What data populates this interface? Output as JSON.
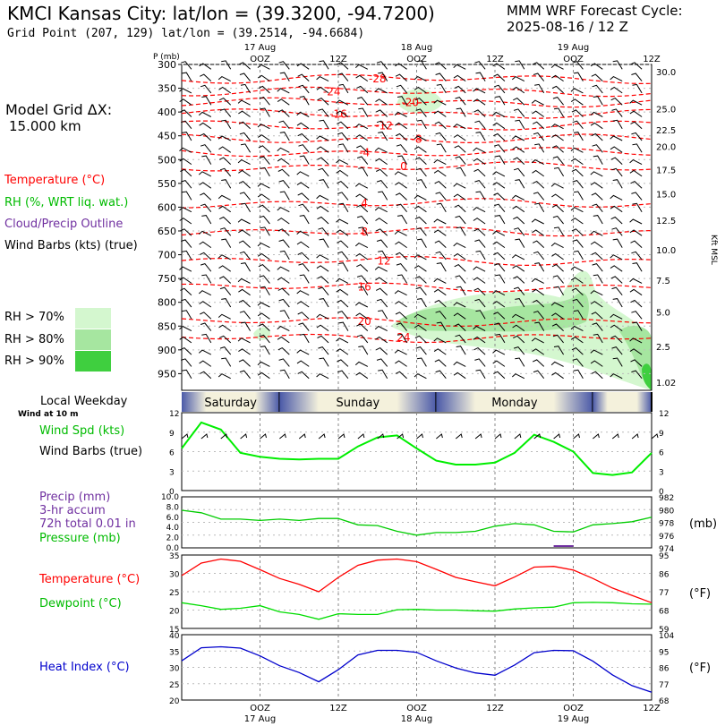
{
  "header": {
    "title": "KMCI Kansas City:  lat/lon = (39.3200, -94.7200)",
    "subtitle": "Grid Point (207, 129) lat/lon = (39.2514, -94.6684)",
    "forecast_line1": "MMM WRF Forecast Cycle:",
    "forecast_line2": "2025-08-16 / 12  Z"
  },
  "left_panel": {
    "model_grid_label": "Model Grid ΔX:",
    "model_grid_value": "15.000 km",
    "legend": [
      {
        "text": "Temperature (°C)",
        "color": "#ff0000"
      },
      {
        "text": "RH (%, WRT liq. wat.)",
        "color": "#00bb00"
      },
      {
        "text": "Cloud/Precip Outline",
        "color": "#7030a0"
      },
      {
        "text": "Wind Barbs (kts) (true)",
        "color": "#000000"
      }
    ],
    "rh_legend": [
      {
        "text": "RH > 70%",
        "color": "#d4f7cf"
      },
      {
        "text": "RH > 80%",
        "color": "#a6e6a0"
      },
      {
        "text": "RH > 90%",
        "color": "#3fcf3f"
      }
    ],
    "local_weekday_label": "Local Weekday",
    "wind_at_label": "Wind at 10 m",
    "wind_spd_label": "Wind Spd (kts)",
    "wind_barbs_label": "Wind Barbs (true)",
    "precip_label": "Precip (mm)",
    "accum_label": "3-hr accum",
    "total_label": "72h total 0.01 in",
    "pressure_label": "Pressure (mb)",
    "temperature_label": "Temperature (°C)",
    "dewpoint_label": "Dewpoint (°C)",
    "heat_index_label": "Heat Index (°C)"
  },
  "colors": {
    "temperature": "#ff0000",
    "dewpoint": "#00dd00",
    "pressure": "#00cc00",
    "wind": "#00ee00",
    "heat_index": "#0000cc",
    "precip": "#7030a0",
    "rh70": "#d4f7cf",
    "rh80": "#a6e6a0",
    "rh90": "#3fcf3f",
    "day_band_light": "#f4f1dc",
    "day_band_dark": "#4a59a8"
  },
  "chart_data": [
    {
      "type": "line",
      "panel": "cross-section",
      "ylabel": "P (mb)",
      "right_ylabel": "Kft MSL",
      "time_labels": [
        {
          "label": "17 Aug",
          "hour": 12,
          "row": 0
        },
        {
          "label": "OOZ",
          "hour": 12,
          "row": 1
        },
        {
          "label": "12Z",
          "hour": 24,
          "row": 1
        },
        {
          "label": "18 Aug",
          "hour": 36,
          "row": 0
        },
        {
          "label": "OOZ",
          "hour": 36,
          "row": 1
        },
        {
          "label": "12Z",
          "hour": 48,
          "row": 1
        },
        {
          "label": "19 Aug",
          "hour": 60,
          "row": 0
        },
        {
          "label": "OOZ",
          "hour": 60,
          "row": 1
        },
        {
          "label": "12Z",
          "hour": 72,
          "row": 1
        }
      ],
      "pressure_ticks": [
        300,
        350,
        400,
        450,
        500,
        550,
        600,
        650,
        700,
        750,
        800,
        850,
        900,
        950
      ],
      "ylim": [
        300,
        985
      ],
      "xlim": [
        0,
        72
      ],
      "kft_ticks": [
        {
          "label": "30.0",
          "p": 315
        },
        {
          "label": "25.0",
          "p": 393
        },
        {
          "label": "22.5",
          "p": 437
        },
        {
          "label": "20.0",
          "p": 472
        },
        {
          "label": "17.5",
          "p": 521
        },
        {
          "label": "15.0",
          "p": 572
        },
        {
          "label": "12.5",
          "p": 627
        },
        {
          "label": "10.0",
          "p": 690
        },
        {
          "label": "7.5",
          "p": 754
        },
        {
          "label": "5.0",
          "p": 820
        },
        {
          "label": "2.5",
          "p": 893
        },
        {
          "label": "1.02",
          "p": 968
        }
      ],
      "isotherms": [
        {
          "label": "-28",
          "p": 330,
          "label_hour": 30
        },
        {
          "label": "-24",
          "p": 357,
          "label_hour": 23
        },
        {
          "label": "-20",
          "p": 380,
          "label_hour": 35
        },
        {
          "label": "-16",
          "p": 404,
          "label_hour": 24
        },
        {
          "label": "-12",
          "p": 429,
          "label_hour": 31
        },
        {
          "label": "-8",
          "p": 457,
          "label_hour": 36
        },
        {
          "label": "-4",
          "p": 485,
          "label_hour": 28
        },
        {
          "label": "0",
          "p": 515,
          "label_hour": 34
        },
        {
          "label": "4",
          "p": 592,
          "label_hour": 28
        },
        {
          "label": "8",
          "p": 652,
          "label_hour": 28
        },
        {
          "label": "12",
          "p": 713,
          "label_hour": 31
        },
        {
          "label": "16",
          "p": 768,
          "label_hour": 28
        },
        {
          "label": "20",
          "p": 840,
          "label_hour": 28
        },
        {
          "label": "24",
          "p": 874,
          "label_hour": 34
        }
      ]
    },
    {
      "type": "line",
      "panel": "wind",
      "title": "Wind Spd (kts)",
      "x": [
        0,
        3,
        6,
        9,
        12,
        15,
        18,
        21,
        24,
        27,
        30,
        33,
        36,
        39,
        42,
        45,
        48,
        51,
        54,
        57,
        60,
        63,
        66,
        69,
        72
      ],
      "values": [
        6.5,
        10.5,
        9.4,
        5.8,
        5.2,
        4.9,
        4.8,
        4.9,
        4.9,
        6.8,
        8.2,
        8.5,
        6.5,
        4.6,
        4.0,
        4.0,
        4.3,
        5.8,
        8.6,
        7.5,
        6.0,
        2.7,
        2.4,
        2.8,
        5.8
      ],
      "ylim": [
        0,
        12
      ],
      "yticks": [
        0,
        3,
        6,
        9,
        12
      ]
    },
    {
      "type": "line",
      "panel": "pressure",
      "title": "Pressure (mb)",
      "x": [
        0,
        3,
        6,
        9,
        12,
        15,
        18,
        21,
        24,
        27,
        30,
        33,
        36,
        39,
        42,
        45,
        48,
        51,
        54,
        57,
        60,
        63,
        66,
        69,
        72
      ],
      "values": [
        979.9,
        979.5,
        978.5,
        978.5,
        978.3,
        978.5,
        978.3,
        978.6,
        978.6,
        977.6,
        977.5,
        976.6,
        976.0,
        976.4,
        976.4,
        976.6,
        977.4,
        977.8,
        977.6,
        976.6,
        976.5,
        977.6,
        977.8,
        978.1,
        978.8
      ],
      "ylim": [
        974,
        982
      ],
      "yticks_right": [
        974,
        976,
        978,
        980,
        982
      ],
      "precip_yticks_left": [
        "0.0",
        "2.0",
        "4.0",
        "6.0",
        "8.0",
        "10.0"
      ],
      "precip_bar": {
        "hour": 58.5,
        "value": 0.1
      },
      "unit_label": "(mb)"
    },
    {
      "type": "line",
      "panel": "temperature",
      "series": [
        {
          "name": "Temperature (°C)",
          "x": [
            0,
            3,
            6,
            9,
            12,
            15,
            18,
            21,
            24,
            27,
            30,
            33,
            36,
            39,
            42,
            45,
            48,
            51,
            54,
            57,
            60,
            63,
            66,
            69,
            72
          ],
          "values": [
            29.4,
            32.8,
            33.9,
            33.3,
            31.0,
            28.6,
            27.0,
            25.0,
            28.9,
            32.2,
            33.6,
            33.9,
            33.2,
            31.1,
            28.9,
            27.7,
            26.6,
            29.0,
            31.7,
            31.9,
            30.9,
            28.6,
            26.0,
            24.0,
            22.0
          ]
        },
        {
          "name": "Dewpoint (°C)",
          "x": [
            0,
            3,
            6,
            9,
            12,
            15,
            18,
            21,
            24,
            27,
            30,
            33,
            36,
            39,
            42,
            45,
            48,
            51,
            54,
            57,
            60,
            63,
            66,
            69,
            72
          ],
          "values": [
            22.0,
            21.2,
            20.2,
            20.5,
            21.2,
            19.5,
            18.8,
            17.5,
            19.0,
            18.8,
            18.8,
            20.1,
            20.2,
            20.0,
            20.0,
            19.8,
            19.7,
            20.3,
            20.6,
            20.8,
            22.0,
            22.1,
            22.0,
            21.7,
            21.6
          ]
        }
      ],
      "ylim": [
        15,
        35
      ],
      "yticks": [
        15,
        20,
        25,
        30,
        35
      ],
      "yticks_right_f": [
        59,
        68,
        77,
        86,
        95
      ],
      "unit_label": "(°F)"
    },
    {
      "type": "line",
      "panel": "heat-index",
      "title": "Heat Index (°C)",
      "x": [
        0,
        3,
        6,
        9,
        12,
        15,
        18,
        21,
        24,
        27,
        30,
        33,
        36,
        39,
        42,
        45,
        48,
        51,
        54,
        57,
        60,
        63,
        66,
        69,
        72
      ],
      "values": [
        32.0,
        36.0,
        36.3,
        35.9,
        33.5,
        30.5,
        28.4,
        25.6,
        29.3,
        33.8,
        35.2,
        35.2,
        34.6,
        32.0,
        29.8,
        28.3,
        27.6,
        30.7,
        34.5,
        35.2,
        35.1,
        31.9,
        27.7,
        24.4,
        22.4
      ],
      "ylim": [
        20,
        40
      ],
      "yticks": [
        20,
        25,
        30,
        35,
        40
      ],
      "yticks_right_f": [
        68,
        77,
        86,
        95,
        104
      ],
      "unit_label": "(°F)",
      "x_tick_labels": [
        {
          "label": "OOZ",
          "hour": 12,
          "row": 0
        },
        {
          "label": "17 Aug",
          "hour": 12,
          "row": 1
        },
        {
          "label": "12Z",
          "hour": 24,
          "row": 0
        },
        {
          "label": "OOZ",
          "hour": 36,
          "row": 0
        },
        {
          "label": "18 Aug",
          "hour": 36,
          "row": 1
        },
        {
          "label": "12Z",
          "hour": 48,
          "row": 0
        },
        {
          "label": "OOZ",
          "hour": 60,
          "row": 0
        },
        {
          "label": "19 Aug",
          "hour": 60,
          "row": 1
        },
        {
          "label": "12Z",
          "hour": 72,
          "row": 0
        }
      ]
    }
  ],
  "weekday_band": [
    {
      "label": "Saturday",
      "start": 0,
      "end": 15
    },
    {
      "label": "Sunday",
      "start": 15,
      "end": 39
    },
    {
      "label": "Monday",
      "start": 39,
      "end": 63
    },
    {
      "label": "",
      "start": 63,
      "end": 72
    }
  ]
}
